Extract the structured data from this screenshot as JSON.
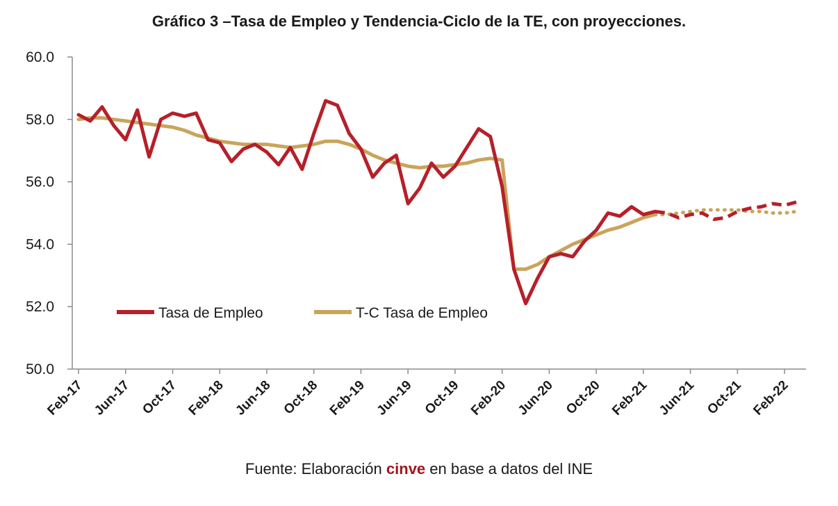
{
  "title": "Gráfico 3 –Tasa de Empleo y Tendencia-Ciclo de la TE, con proyecciones.",
  "footer": {
    "prefix": "Fuente: Elaboración ",
    "brand": "cinve",
    "suffix": " en base a datos del INE"
  },
  "colors": {
    "tasa": "#b5202a",
    "tc": "#c9a45a",
    "axis": "#8c8c8c",
    "brand": "#a0151c"
  },
  "chart_data": {
    "type": "line",
    "title": "Gráfico 3 –Tasa de Empleo y Tendencia-Ciclo de la TE, con proyecciones.",
    "xlabel": "",
    "ylabel": "",
    "ylim": [
      50,
      60
    ],
    "yticks": [
      "50.0",
      "52.0",
      "54.0",
      "56.0",
      "58.0",
      "60.0"
    ],
    "x_tick_labels": [
      "Feb-17",
      "Jun-17",
      "Oct-17",
      "Feb-18",
      "Jun-18",
      "Oct-18",
      "Feb-19",
      "Jun-19",
      "Oct-19",
      "Feb-20",
      "Jun-20",
      "Oct-20",
      "Feb-21",
      "Jun-21",
      "Oct-21",
      "Feb-22"
    ],
    "grid": false,
    "legend_position": "lower-left",
    "observed_end_index": 49,
    "series": [
      {
        "name": "Tasa de Empleo",
        "color": "#b5202a",
        "style": "solid-then-dashed",
        "values": [
          58.15,
          57.95,
          58.4,
          57.8,
          57.35,
          58.3,
          56.8,
          58.0,
          58.2,
          58.1,
          58.2,
          57.35,
          57.25,
          56.65,
          57.05,
          57.2,
          56.95,
          56.55,
          57.1,
          56.4,
          57.55,
          58.6,
          58.45,
          57.55,
          57.05,
          56.15,
          56.6,
          56.85,
          55.3,
          55.8,
          56.6,
          56.15,
          56.5,
          57.1,
          57.7,
          57.45,
          55.85,
          53.2,
          52.1,
          52.9,
          53.6,
          53.7,
          53.6,
          54.1,
          54.45,
          55.0,
          54.9,
          55.2,
          54.95,
          55.05,
          55.0,
          54.85,
          54.95,
          55.0,
          54.8,
          54.85,
          55.05,
          55.15,
          55.2,
          55.3,
          55.25,
          55.35
        ]
      },
      {
        "name": "T-C Tasa de Empleo",
        "color": "#c9a45a",
        "style": "solid-then-dotted",
        "values": [
          58.0,
          58.05,
          58.05,
          58.0,
          57.95,
          57.9,
          57.85,
          57.8,
          57.75,
          57.65,
          57.5,
          57.4,
          57.3,
          57.25,
          57.2,
          57.2,
          57.2,
          57.15,
          57.1,
          57.15,
          57.2,
          57.3,
          57.3,
          57.2,
          57.05,
          56.85,
          56.7,
          56.6,
          56.5,
          56.45,
          56.5,
          56.5,
          56.55,
          56.6,
          56.7,
          56.75,
          56.7,
          53.2,
          53.2,
          53.35,
          53.6,
          53.8,
          54.0,
          54.15,
          54.3,
          54.45,
          54.55,
          54.7,
          54.85,
          54.95,
          54.95,
          55.0,
          55.05,
          55.1,
          55.1,
          55.1,
          55.1,
          55.05,
          55.05,
          55.0,
          55.0,
          55.05
        ]
      }
    ]
  }
}
